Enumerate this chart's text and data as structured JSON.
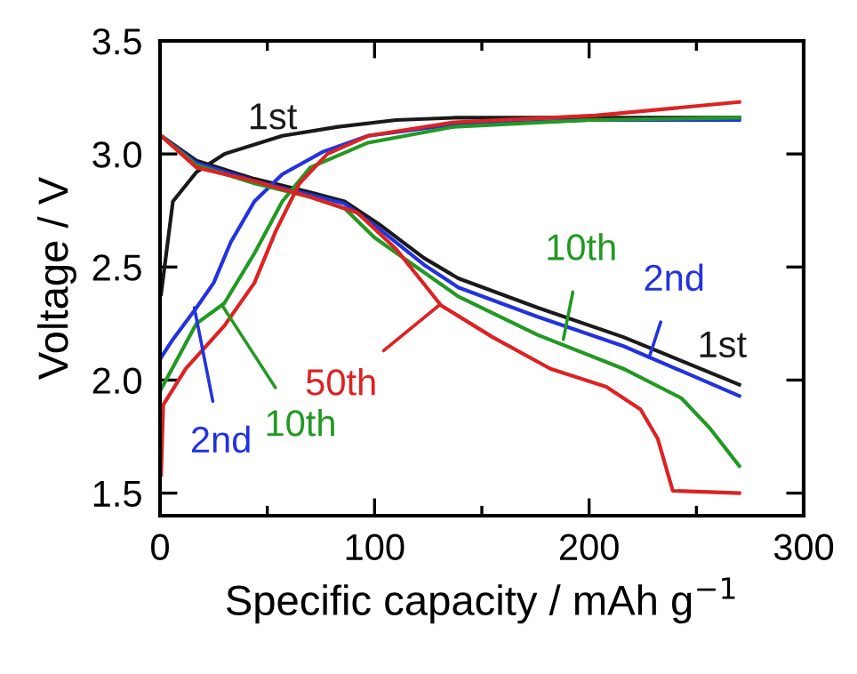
{
  "chart_data": {
    "type": "line",
    "xlabel": "Specific capacity / mAh g$^{−1}$",
    "ylabel": "Voltage / V",
    "xlim": [
      0,
      300
    ],
    "ylim": [
      1.4,
      3.5
    ],
    "xticks": [
      0,
      {
        "value": 50,
        "label": null
      },
      100,
      {
        "value": 150,
        "label": null
      },
      200,
      {
        "value": 250,
        "label": null
      },
      300
    ],
    "yticks": [
      1.5,
      {
        "value": 2,
        "label": "2.0"
      },
      2.5,
      {
        "value": 3,
        "label": "3.0"
      },
      3.5
    ],
    "grid": false,
    "marker": "none",
    "line_style": "solid",
    "series": [
      {
        "color": "#1a1a1a",
        "x": [
          0.5,
          6,
          17,
          30,
          57,
          83,
          110,
          137,
          180,
          230,
          270
        ],
        "values": [
          2.38,
          2.79,
          2.92,
          3.0,
          3.08,
          3.12,
          3.15,
          3.16,
          3.16,
          3.16,
          3.16
        ]
      },
      {
        "color": "#1a1a1a",
        "x": [
          0.5,
          17,
          44,
          70,
          86,
          102,
          123,
          139,
          176,
          216,
          270
        ],
        "values": [
          3.08,
          2.97,
          2.89,
          2.83,
          2.79,
          2.69,
          2.54,
          2.45,
          2.32,
          2.19,
          1.98
        ]
      },
      {
        "color": "#2233dd",
        "x": [
          0.5,
          6,
          17,
          25,
          33,
          44,
          57,
          76,
          97,
          137,
          200,
          270
        ],
        "values": [
          2.1,
          2.18,
          2.32,
          2.43,
          2.61,
          2.79,
          2.91,
          3.01,
          3.08,
          3.13,
          3.15,
          3.15
        ]
      },
      {
        "color": "#2233dd",
        "x": [
          0.5,
          17,
          44,
          70,
          86,
          102,
          123,
          139,
          176,
          216,
          270
        ],
        "values": [
          3.08,
          2.96,
          2.88,
          2.82,
          2.78,
          2.67,
          2.51,
          2.41,
          2.28,
          2.15,
          1.93
        ]
      },
      {
        "color": "#229922",
        "x": [
          0.5,
          17,
          30,
          44,
          57,
          70,
          97,
          137,
          200,
          270
        ],
        "values": [
          1.96,
          2.25,
          2.34,
          2.56,
          2.79,
          2.94,
          3.05,
          3.12,
          3.15,
          3.16
        ]
      },
      {
        "color": "#229922",
        "x": [
          0.5,
          17,
          44,
          70,
          86,
          100,
          118,
          139,
          176,
          216,
          243,
          256,
          270
        ],
        "values": [
          3.08,
          2.95,
          2.87,
          2.81,
          2.76,
          2.63,
          2.51,
          2.37,
          2.2,
          2.05,
          1.92,
          1.79,
          1.62
        ]
      },
      {
        "color": "#dd2222",
        "x": [
          0.5,
          1.5,
          12,
          30,
          44,
          54,
          65,
          78,
          97,
          137,
          203,
          270
        ],
        "values": [
          1.58,
          1.89,
          2.05,
          2.24,
          2.43,
          2.66,
          2.87,
          3.0,
          3.08,
          3.14,
          3.17,
          3.23
        ]
      },
      {
        "color": "#dd2222",
        "x": [
          0.5,
          17,
          44,
          70,
          92,
          110,
          131,
          155,
          182,
          208,
          224,
          232,
          239,
          270
        ],
        "values": [
          3.08,
          2.94,
          2.88,
          2.81,
          2.74,
          2.58,
          2.33,
          2.19,
          2.05,
          1.97,
          1.87,
          1.74,
          1.51,
          1.5
        ]
      }
    ],
    "annotations": [
      {
        "text": "1st",
        "x": 40,
        "y": 3.05
      },
      {
        "text": "1st",
        "x": 262,
        "y": 2.01
      },
      {
        "text": "2nd",
        "x": 228,
        "y": 2.1
      },
      {
        "text": "10th",
        "x": 188,
        "y": 2.18
      },
      {
        "text": "2nd",
        "x": 16,
        "y": 2.32
      },
      {
        "text": "10th",
        "x": 29,
        "y": 2.33
      },
      {
        "text": "50th",
        "x": 130,
        "y": 2.33
      }
    ]
  }
}
